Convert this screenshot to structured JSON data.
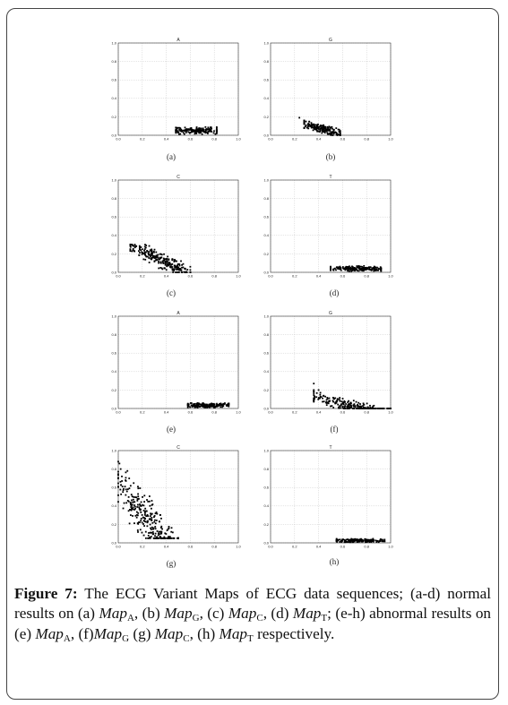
{
  "figure": {
    "caption": {
      "label": "Figure 7:",
      "text_1": " The ECG Variant Maps of ECG data sequences; (a-d) normal results on (a) ",
      "map": "Map",
      "sub_A": "A",
      "sub_G": "G",
      "sub_C": "C",
      "sub_T": "T",
      "sep_b": ", (b) ",
      "sep_c": ", (c) ",
      "sep_d": ", (d) ",
      "text_2": "; (e-h) abnormal results on (e) ",
      "sep_f": ", (f)",
      "sep_g": " (g) ",
      "sep_h": ", (h) ",
      "text_end": " respectively."
    }
  },
  "chart_data": [
    {
      "type": "scatter",
      "panel_label": "(a)",
      "title": "A",
      "xlim": [
        0,
        1
      ],
      "ylim": [
        0,
        1
      ],
      "xticks": [
        "0.0",
        "0.2",
        "0.4",
        "0.6",
        "0.8",
        "1.0"
      ],
      "yticks": [
        "0.0",
        "0.2",
        "0.4",
        "0.6",
        "0.8",
        "1.0"
      ],
      "grid": true,
      "cluster": {
        "x_range": [
          0.48,
          0.82
        ],
        "y_range": [
          0.0,
          0.12
        ],
        "center": [
          0.62,
          0.05
        ],
        "count": 180
      },
      "points": []
    },
    {
      "type": "scatter",
      "panel_label": "(b)",
      "title": "G",
      "xlim": [
        0,
        1
      ],
      "ylim": [
        0,
        1
      ],
      "xticks": [
        "0.0",
        "0.2",
        "0.4",
        "0.6",
        "0.8",
        "1.0"
      ],
      "yticks": [
        "0.0",
        "0.2",
        "0.4",
        "0.6",
        "0.8",
        "1.0"
      ],
      "grid": true,
      "cluster": {
        "x_range": [
          0.28,
          0.58
        ],
        "y_range": [
          0.0,
          0.16
        ],
        "center": [
          0.4,
          0.08
        ],
        "count": 190,
        "slope": -0.35
      },
      "points": [
        [
          0.24,
          0.19
        ]
      ]
    },
    {
      "type": "scatter",
      "panel_label": "(c)",
      "title": "C",
      "xlim": [
        0,
        1
      ],
      "ylim": [
        0,
        1
      ],
      "xticks": [
        "0.0",
        "0.2",
        "0.4",
        "0.6",
        "0.8",
        "1.0"
      ],
      "yticks": [
        "0.0",
        "0.2",
        "0.4",
        "0.6",
        "0.8",
        "1.0"
      ],
      "grid": true,
      "cluster": {
        "x_range": [
          0.1,
          0.6
        ],
        "y_range": [
          0.0,
          0.3
        ],
        "center": [
          0.38,
          0.12
        ],
        "count": 240,
        "slope": -0.6
      },
      "points": [
        [
          0.1,
          0.3
        ],
        [
          0.14,
          0.27
        ]
      ]
    },
    {
      "type": "scatter",
      "panel_label": "(d)",
      "title": "T",
      "xlim": [
        0,
        1
      ],
      "ylim": [
        0,
        1
      ],
      "xticks": [
        "0.0",
        "0.2",
        "0.4",
        "0.6",
        "0.8",
        "1.0"
      ],
      "yticks": [
        "0.0",
        "0.2",
        "0.4",
        "0.6",
        "0.8",
        "1.0"
      ],
      "grid": true,
      "cluster": {
        "x_range": [
          0.5,
          0.92
        ],
        "y_range": [
          0.0,
          0.09
        ],
        "center": [
          0.68,
          0.04
        ],
        "count": 170
      },
      "points": [
        [
          0.88,
          0.02
        ]
      ]
    },
    {
      "type": "scatter",
      "panel_label": "(e)",
      "title": "A",
      "xlim": [
        0,
        1
      ],
      "ylim": [
        0,
        1
      ],
      "xticks": [
        "0.0",
        "0.2",
        "0.4",
        "0.6",
        "0.8",
        "1.0"
      ],
      "yticks": [
        "0.0",
        "0.2",
        "0.4",
        "0.6",
        "0.8",
        "1.0"
      ],
      "grid": true,
      "cluster": {
        "x_range": [
          0.58,
          0.92
        ],
        "y_range": [
          0.0,
          0.08
        ],
        "center": [
          0.74,
          0.035
        ],
        "count": 170
      },
      "points": []
    },
    {
      "type": "scatter",
      "panel_label": "(f)",
      "title": "G",
      "xlim": [
        0,
        1
      ],
      "ylim": [
        0,
        1
      ],
      "xticks": [
        "0.0",
        "0.2",
        "0.4",
        "0.6",
        "0.8",
        "1.0"
      ],
      "yticks": [
        "0.0",
        "0.2",
        "0.4",
        "0.6",
        "0.8",
        "1.0"
      ],
      "grid": true,
      "cluster": {
        "x_range": [
          0.36,
          1.0
        ],
        "y_range": [
          0.0,
          0.22
        ],
        "center": [
          0.6,
          0.05
        ],
        "count": 240,
        "slope": -0.32
      },
      "points": [
        [
          0.36,
          0.27
        ],
        [
          0.4,
          0.2
        ]
      ]
    },
    {
      "type": "scatter",
      "panel_label": "(g)",
      "title": "C",
      "xlim": [
        0,
        1
      ],
      "ylim": [
        0,
        1
      ],
      "xticks": [
        "0.0",
        "0.2",
        "0.4",
        "0.6",
        "0.8",
        "1.0"
      ],
      "yticks": [
        "0.0",
        "0.2",
        "0.4",
        "0.6",
        "0.8",
        "1.0"
      ],
      "grid": true,
      "cluster": {
        "x_range": [
          0.0,
          0.5
        ],
        "y_range": [
          0.05,
          0.88
        ],
        "center": [
          0.15,
          0.4
        ],
        "count": 300,
        "slope": -1.6
      },
      "points": [
        [
          0.01,
          0.86
        ],
        [
          0.02,
          0.8
        ],
        [
          0.03,
          0.72
        ]
      ]
    },
    {
      "type": "scatter",
      "panel_label": "(h)",
      "title": "T",
      "xlim": [
        0,
        1
      ],
      "ylim": [
        0,
        1
      ],
      "xticks": [
        "0.0",
        "0.2",
        "0.4",
        "0.6",
        "0.8",
        "1.0"
      ],
      "yticks": [
        "0.0",
        "0.2",
        "0.4",
        "0.6",
        "0.8",
        "1.0"
      ],
      "grid": true,
      "cluster": {
        "x_range": [
          0.55,
          0.95
        ],
        "y_range": [
          0.0,
          0.06
        ],
        "center": [
          0.72,
          0.025
        ],
        "count": 170
      },
      "points": []
    }
  ]
}
